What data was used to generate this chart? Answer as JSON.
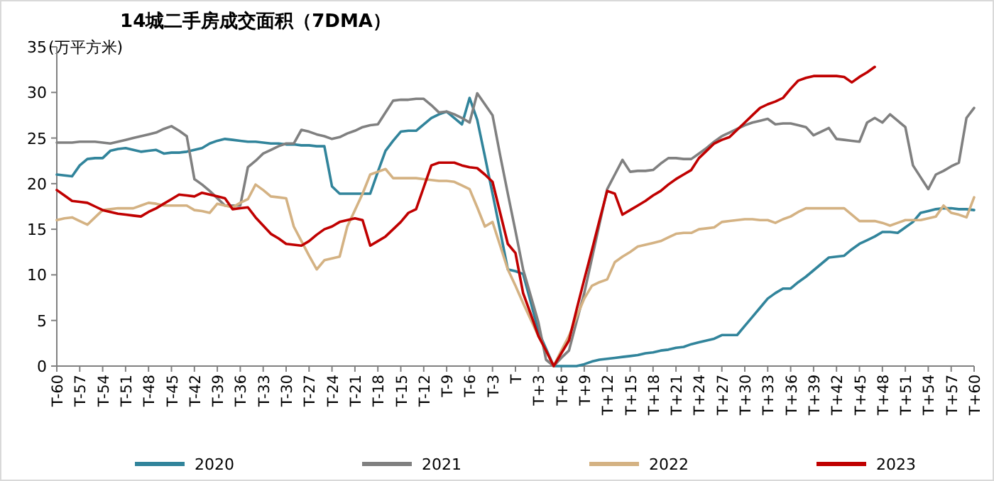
{
  "chart_data": {
    "type": "line",
    "title": "14城二手房成交面积（7DMA）",
    "ylabel": "(万平方米)",
    "ylim": [
      0,
      35
    ],
    "yticks": [
      0,
      5,
      10,
      15,
      20,
      25,
      30,
      35
    ],
    "categories": [
      "T-60",
      null,
      null,
      "T-57",
      null,
      null,
      "T-54",
      null,
      null,
      "T-51",
      null,
      null,
      "T-48",
      null,
      null,
      "T-45",
      null,
      null,
      "T-42",
      null,
      null,
      "T-39",
      null,
      null,
      "T-36",
      null,
      null,
      "T-33",
      null,
      null,
      "T-30",
      null,
      null,
      "T-27",
      null,
      null,
      "T-24",
      null,
      null,
      "T-21",
      null,
      null,
      "T-18",
      null,
      null,
      "T-15",
      null,
      null,
      "T-12",
      null,
      null,
      "T-9",
      null,
      null,
      "T-6",
      null,
      null,
      "T-3",
      null,
      null,
      "T",
      null,
      null,
      "T+3",
      null,
      null,
      "T+6",
      null,
      null,
      "T+9",
      null,
      null,
      "T+12",
      null,
      null,
      "T+15",
      null,
      null,
      "T+18",
      null,
      null,
      "T+21",
      null,
      null,
      "T+24",
      null,
      null,
      "T+27",
      null,
      null,
      "T+30",
      null,
      null,
      "T+33",
      null,
      null,
      "T+36",
      null,
      null,
      "T+39",
      null,
      null,
      "T+42",
      null,
      null,
      "T+45",
      null,
      null,
      "T+48",
      null,
      null,
      "T+51",
      null,
      null,
      "T+54",
      null,
      null,
      "T+57",
      null,
      null,
      "T+60"
    ],
    "legend": "bottom",
    "series": [
      {
        "name": "2020",
        "color": "#31849b",
        "values": [
          21,
          20.9,
          20.8,
          22,
          22.7,
          22.8,
          22.8,
          23.6,
          23.8,
          23.9,
          23.7,
          23.5,
          23.6,
          23.7,
          23.3,
          23.4,
          23.4,
          23.5,
          23.7,
          23.9,
          24.4,
          24.7,
          24.9,
          24.8,
          24.7,
          24.6,
          24.6,
          24.5,
          24.4,
          24.4,
          24.3,
          24.3,
          24.2,
          24.2,
          24.1,
          24.1,
          19.7,
          18.9,
          18.9,
          18.9,
          18.9,
          18.9,
          21.3,
          23.6,
          24.7,
          25.7,
          25.8,
          25.8,
          26.5,
          27.2,
          27.6,
          27.9,
          27.2,
          26.5,
          29.4,
          27,
          23,
          18.9,
          14.8,
          10.6,
          10.4,
          10.1,
          7,
          3.8,
          1.9,
          0,
          0,
          0,
          0,
          0.2,
          0.5,
          0.7,
          0.8,
          0.9,
          1,
          1.1,
          1.2,
          1.4,
          1.5,
          1.7,
          1.8,
          2,
          2.1,
          2.4,
          2.6,
          2.8,
          3,
          3.4,
          3.4,
          3.4,
          4.4,
          5.4,
          6.4,
          7.4,
          8,
          8.5,
          8.5,
          9.2,
          9.8,
          10.5,
          11.2,
          11.9,
          12,
          12.1,
          12.8,
          13.4,
          13.8,
          14.2,
          14.7,
          14.7,
          14.6,
          15.2,
          15.8,
          16.8,
          17,
          17.2,
          17.3,
          17.3,
          17.2,
          17.2,
          17.1
        ]
      },
      {
        "name": "2021",
        "color": "#808080",
        "values": [
          24.5,
          24.5,
          24.5,
          24.6,
          24.6,
          24.6,
          24.5,
          24.4,
          24.6,
          24.8,
          25,
          25.2,
          25.4,
          25.6,
          26,
          26.3,
          25.8,
          25.2,
          20.5,
          19.9,
          19.2,
          18.4,
          17.6,
          17.6,
          17.6,
          21.8,
          22.5,
          23.3,
          23.7,
          24.1,
          24.4,
          24.4,
          25.9,
          25.7,
          25.4,
          25.2,
          24.9,
          25.1,
          25.5,
          25.8,
          26.2,
          26.4,
          26.5,
          27.8,
          29.1,
          29.2,
          29.2,
          29.3,
          29.3,
          28.6,
          27.8,
          27.9,
          27.6,
          27.2,
          26.7,
          29.9,
          28.7,
          27.5,
          23.1,
          18.9,
          14.8,
          10.6,
          7.7,
          4.8,
          0.7,
          0,
          0.9,
          1.7,
          4.9,
          8,
          11.8,
          15.6,
          19.4,
          21,
          22.6,
          21.3,
          21.4,
          21.4,
          21.5,
          22.2,
          22.8,
          22.8,
          22.7,
          22.7,
          23.3,
          23.9,
          24.6,
          25.2,
          25.6,
          26,
          26.4,
          26.7,
          26.9,
          27.1,
          26.5,
          26.6,
          26.6,
          26.4,
          26.2,
          25.3,
          25.7,
          26.1,
          24.9,
          24.8,
          24.7,
          24.6,
          26.7,
          27.2,
          26.7,
          27.6,
          26.9,
          26.2,
          22,
          20.7,
          19.4,
          21,
          21.4,
          21.9,
          22.3,
          27.2,
          28.3
        ]
      },
      {
        "name": "2022",
        "color": "#d4b283",
        "values": [
          16,
          16.2,
          16.3,
          15.9,
          15.5,
          16.3,
          17.1,
          17.2,
          17.3,
          17.3,
          17.3,
          17.6,
          17.9,
          17.8,
          17.6,
          17.6,
          17.6,
          17.6,
          17.1,
          17,
          16.8,
          17.8,
          17.6,
          17.4,
          17.9,
          18.3,
          19.9,
          19.3,
          18.6,
          18.5,
          18.4,
          15.3,
          13.7,
          12.1,
          10.6,
          11.6,
          11.8,
          12,
          15.3,
          17.1,
          18.9,
          21,
          21.3,
          21.6,
          20.6,
          20.6,
          20.6,
          20.6,
          20.5,
          20.4,
          20.3,
          20.3,
          20.2,
          19.8,
          19.4,
          17.4,
          15.3,
          15.8,
          13.2,
          10.6,
          8.8,
          6.9,
          5.1,
          3.3,
          1.7,
          0,
          1.7,
          3.3,
          5.4,
          7.4,
          8.8,
          9.2,
          9.5,
          11.4,
          12,
          12.5,
          13.1,
          13.3,
          13.5,
          13.7,
          14.1,
          14.5,
          14.6,
          14.6,
          15,
          15.1,
          15.2,
          15.8,
          15.9,
          16,
          16.1,
          16.1,
          16,
          16,
          15.7,
          16.1,
          16.4,
          16.9,
          17.3,
          17.3,
          17.3,
          17.3,
          17.3,
          17.3,
          16.6,
          15.9,
          15.9,
          15.9,
          15.7,
          15.4,
          15.7,
          16,
          16,
          16,
          16.2,
          16.4,
          17.6,
          16.8,
          16.6,
          16.3,
          18.5
        ]
      },
      {
        "name": "2023",
        "color": "#c00000",
        "values": [
          19.3,
          18.7,
          18.1,
          18,
          17.9,
          17.5,
          17.1,
          16.9,
          16.7,
          16.6,
          16.5,
          16.4,
          16.9,
          17.3,
          17.8,
          18.3,
          18.8,
          18.7,
          18.6,
          19,
          18.8,
          18.6,
          18.4,
          17.2,
          17.3,
          17.4,
          16.3,
          15.4,
          14.5,
          14,
          13.4,
          13.3,
          13.2,
          13.7,
          14.4,
          15,
          15.3,
          15.8,
          16,
          16.2,
          16,
          13.2,
          13.7,
          14.2,
          15,
          15.8,
          16.8,
          17.2,
          19.6,
          22,
          22.3,
          22.3,
          22.3,
          22,
          21.8,
          21.7,
          21,
          20.2,
          16.8,
          13.4,
          12.4,
          8,
          5.7,
          3.3,
          1.7,
          0,
          1.4,
          2.8,
          6.2,
          9.5,
          12.7,
          16,
          19.2,
          18.9,
          16.6,
          17.1,
          17.6,
          18.1,
          18.7,
          19.2,
          19.9,
          20.5,
          21,
          21.5,
          22.8,
          23.6,
          24.4,
          24.8,
          25.1,
          25.9,
          26.7,
          27.5,
          28.3,
          28.7,
          29,
          29.4,
          30.4,
          31.3,
          31.6,
          31.8,
          31.8,
          31.8,
          31.8,
          31.7,
          31.1,
          31.7,
          32.2,
          32.8,
          null,
          null,
          null,
          null,
          null,
          null,
          null,
          null,
          null,
          null,
          null,
          null,
          null
        ]
      }
    ]
  }
}
